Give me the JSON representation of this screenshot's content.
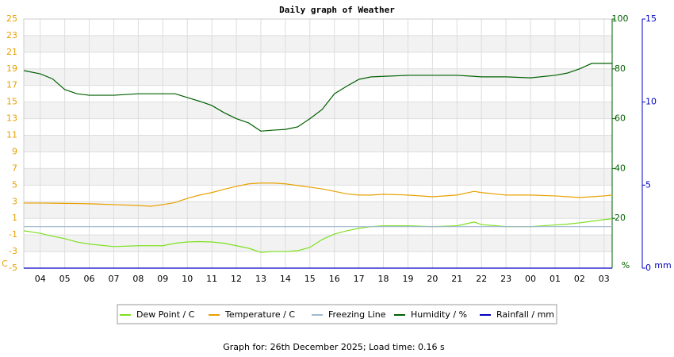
{
  "chart_data": {
    "type": "line",
    "title": "Daily graph of Weather",
    "footer": "Graph for: 26th December 2025; Load time: 0.16 s",
    "x": [
      3.33,
      4,
      4.5,
      5,
      5.5,
      6,
      7,
      8,
      8.5,
      9,
      9.5,
      10,
      10.5,
      11,
      11.5,
      12,
      12.5,
      13,
      13.5,
      14,
      14.5,
      15,
      15.5,
      16,
      16.5,
      17,
      17.5,
      18,
      19,
      20,
      21,
      21.7,
      22,
      23,
      24,
      25,
      25.5,
      26,
      26.5,
      27,
      27.33
    ],
    "xlim": [
      3.33,
      27.33
    ],
    "xticks": [
      {
        "value": 4,
        "label": "04"
      },
      {
        "value": 5,
        "label": "05"
      },
      {
        "value": 6,
        "label": "06"
      },
      {
        "value": 7,
        "label": "07"
      },
      {
        "value": 8,
        "label": "08"
      },
      {
        "value": 9,
        "label": "09"
      },
      10,
      11,
      12,
      13,
      14,
      15,
      16,
      17,
      18,
      19,
      20,
      21,
      22,
      23,
      {
        "value": 24,
        "label": "00"
      },
      {
        "value": 25,
        "label": "01"
      },
      {
        "value": 26,
        "label": "02"
      },
      {
        "value": 27,
        "label": "03"
      }
    ],
    "ylim": [
      -5,
      25
    ],
    "yticks": [
      -5,
      -3,
      -1,
      1,
      3,
      5,
      7,
      9,
      11,
      13,
      15,
      17,
      19,
      21,
      23,
      25
    ],
    "y_unit": "C",
    "y2lim": [
      0,
      100
    ],
    "y2ticks": [
      20,
      40,
      60,
      80,
      100
    ],
    "y2_unit": "%",
    "y3lim": [
      0,
      15
    ],
    "y3ticks": [
      0,
      5,
      10,
      15
    ],
    "y3_unit": "mm",
    "series": [
      {
        "name": "Dew Point / C",
        "color": "#7ee020",
        "values": [
          -0.5,
          -0.8,
          -1.15,
          -1.45,
          -1.85,
          -2.1,
          -2.4,
          -2.3,
          -2.3,
          -2.3,
          -2.0,
          -1.85,
          -1.8,
          -1.85,
          -2.0,
          -2.3,
          -2.6,
          -3.1,
          -3.0,
          -3.0,
          -2.9,
          -2.5,
          -1.55,
          -0.9,
          -0.5,
          -0.2,
          0,
          0.1,
          0.1,
          0,
          0.1,
          0.55,
          0.25,
          0,
          0,
          0.2,
          0.3,
          0.45,
          0.65,
          0.85,
          0.95
        ]
      },
      {
        "name": "Temperature / C",
        "color": "#e8a000",
        "values": [
          2.84,
          2.84,
          2.82,
          2.8,
          2.78,
          2.75,
          2.65,
          2.55,
          2.45,
          2.65,
          2.9,
          3.4,
          3.8,
          4.1,
          4.5,
          4.85,
          5.15,
          5.25,
          5.25,
          5.15,
          4.95,
          4.75,
          4.55,
          4.25,
          3.95,
          3.8,
          3.8,
          3.9,
          3.8,
          3.6,
          3.8,
          4.25,
          4.1,
          3.8,
          3.8,
          3.7,
          3.6,
          3.5,
          3.6,
          3.7,
          3.8
        ]
      },
      {
        "name": "Freezing Line",
        "color": "#a0b8d0",
        "values": [
          0,
          0,
          0,
          0,
          0,
          0,
          0,
          0,
          0,
          0,
          0,
          0,
          0,
          0,
          0,
          0,
          0,
          0,
          0,
          0,
          0,
          0,
          0,
          0,
          0,
          0,
          0,
          0,
          0,
          0,
          0,
          0,
          0,
          0,
          0,
          0,
          0,
          0,
          0,
          0,
          0
        ]
      },
      {
        "name": "Humidity / %",
        "color": "#006000",
        "axis": "y2",
        "values": [
          79.3,
          78,
          76,
          71.7,
          70,
          69.4,
          69.4,
          70,
          70,
          70,
          70,
          68.5,
          67,
          65.3,
          62.4,
          60,
          58.3,
          55,
          55.4,
          55.7,
          56.7,
          60,
          63.7,
          70,
          73,
          75.8,
          76.8,
          77,
          77.4,
          77.4,
          77.4,
          77,
          76.8,
          76.8,
          76.4,
          77.4,
          78.3,
          80,
          82.2,
          82.2,
          82.2
        ]
      },
      {
        "name": "Rainfall / mm",
        "color": "#0000c0",
        "axis": "y3",
        "values": [
          0,
          0,
          0,
          0,
          0,
          0,
          0,
          0,
          0,
          0,
          0,
          0,
          0,
          0,
          0,
          0,
          0,
          0,
          0,
          0,
          0,
          0,
          0,
          0,
          0,
          0,
          0,
          0,
          0,
          0,
          0,
          0,
          0,
          0,
          0,
          0,
          0,
          0,
          0,
          0,
          0
        ]
      }
    ]
  }
}
